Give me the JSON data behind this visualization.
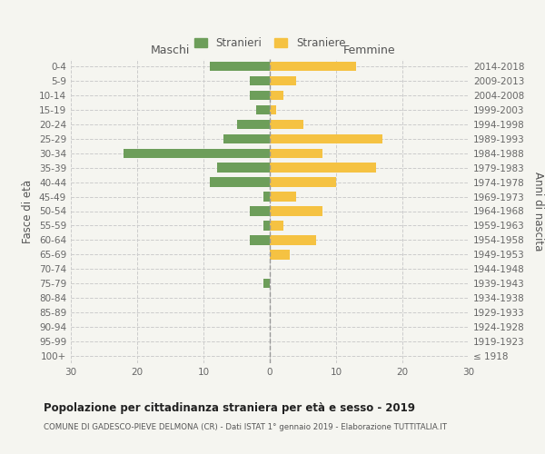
{
  "age_groups": [
    "100+",
    "95-99",
    "90-94",
    "85-89",
    "80-84",
    "75-79",
    "70-74",
    "65-69",
    "60-64",
    "55-59",
    "50-54",
    "45-49",
    "40-44",
    "35-39",
    "30-34",
    "25-29",
    "20-24",
    "15-19",
    "10-14",
    "5-9",
    "0-4"
  ],
  "birth_years": [
    "≤ 1918",
    "1919-1923",
    "1924-1928",
    "1929-1933",
    "1934-1938",
    "1939-1943",
    "1944-1948",
    "1949-1953",
    "1954-1958",
    "1959-1963",
    "1964-1968",
    "1969-1973",
    "1974-1978",
    "1979-1983",
    "1984-1988",
    "1989-1993",
    "1994-1998",
    "1999-2003",
    "2004-2008",
    "2009-2013",
    "2014-2018"
  ],
  "males": [
    0,
    0,
    0,
    0,
    0,
    1,
    0,
    0,
    3,
    1,
    3,
    1,
    9,
    8,
    22,
    7,
    5,
    2,
    3,
    3,
    9
  ],
  "females": [
    0,
    0,
    0,
    0,
    0,
    0,
    0,
    3,
    7,
    2,
    8,
    4,
    10,
    16,
    8,
    17,
    5,
    1,
    2,
    4,
    13
  ],
  "male_color": "#6d9e5a",
  "female_color": "#f5c242",
  "background_color": "#f5f5f0",
  "grid_color": "#cccccc",
  "xlim": 30,
  "title": "Popolazione per cittadinanza straniera per età e sesso - 2019",
  "subtitle": "COMUNE DI GADESCO-PIEVE DELMONA (CR) - Dati ISTAT 1° gennaio 2019 - Elaborazione TUTTITALIA.IT",
  "ylabel_left": "Fasce di età",
  "ylabel_right": "Anni di nascita",
  "legend_stranieri": "Stranieri",
  "legend_straniere": "Straniere",
  "maschi_label": "Maschi",
  "femmine_label": "Femmine"
}
